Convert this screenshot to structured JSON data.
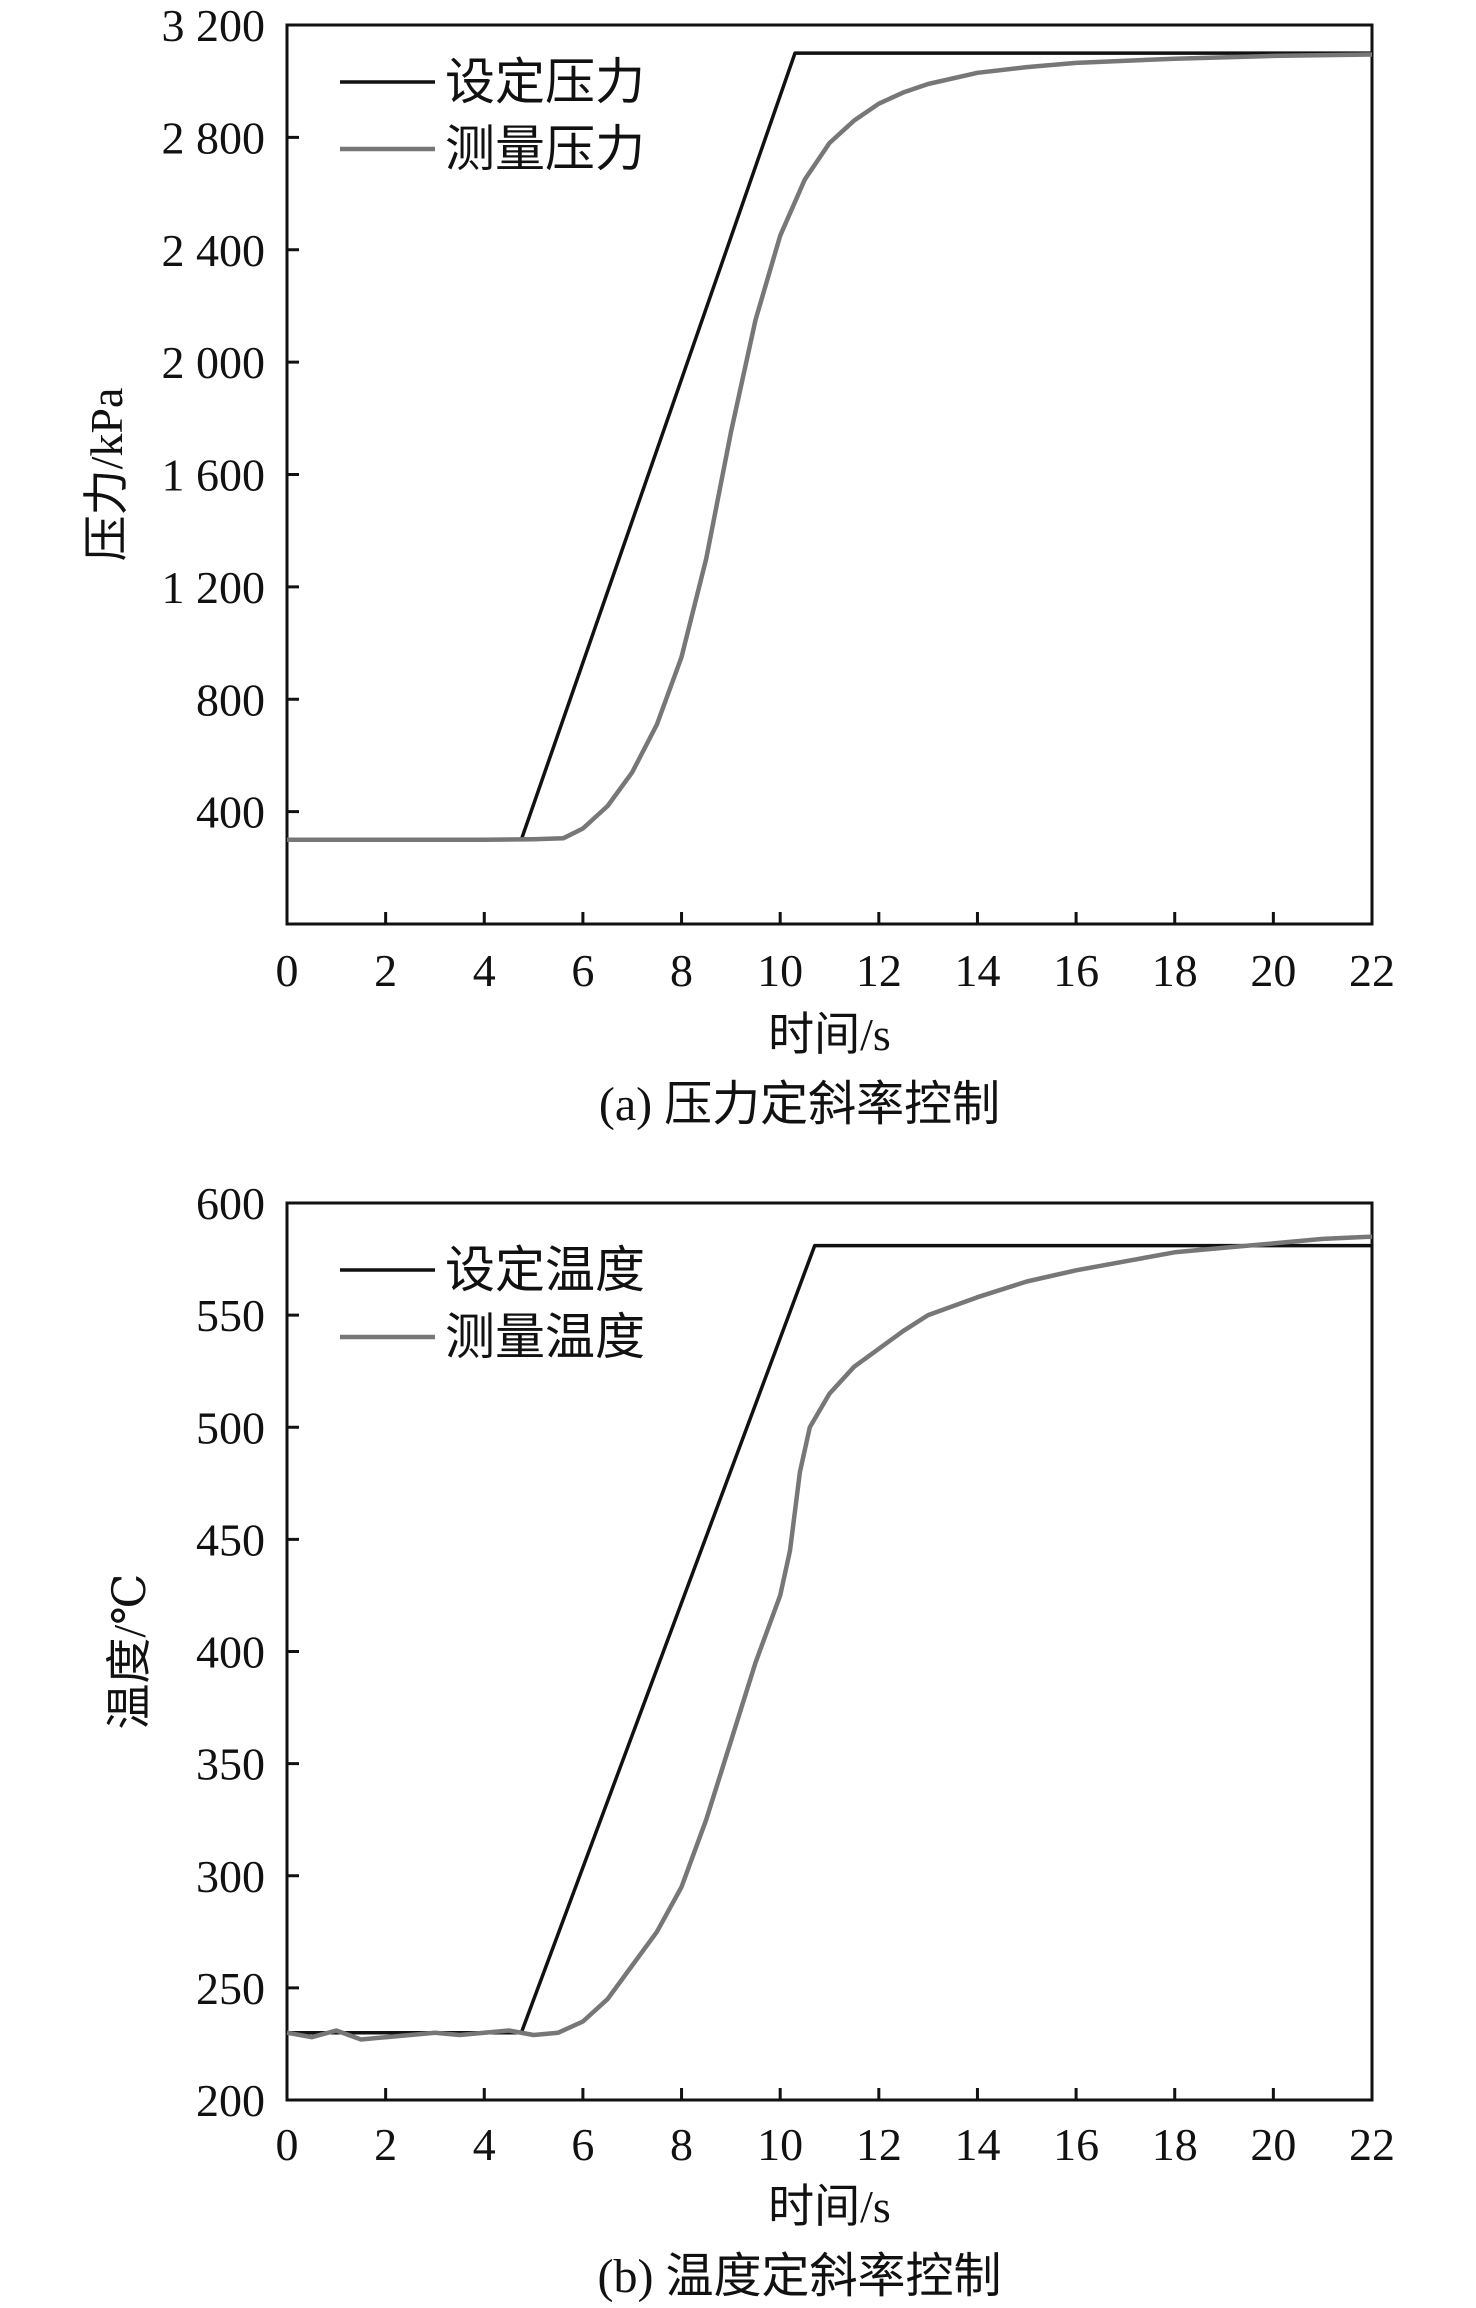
{
  "chart_data": [
    {
      "type": "line",
      "caption": "(a) 压力定斜率控制",
      "xlabel": "时间/s",
      "ylabel": "压力/kPa",
      "xlim": [
        0,
        22
      ],
      "ylim": [
        0,
        3200
      ],
      "x_ticks": [
        0,
        2,
        4,
        6,
        8,
        10,
        12,
        14,
        16,
        18,
        20,
        22
      ],
      "x_tick_labels": [
        "0",
        "2",
        "4",
        "6",
        "8",
        "10",
        "12",
        "14",
        "16",
        "18",
        "20",
        "22"
      ],
      "y_ticks": [
        400,
        800,
        1200,
        1600,
        2000,
        2400,
        2800,
        3200
      ],
      "y_tick_labels": [
        "400",
        "800",
        "1 200",
        "1 600",
        "2 000",
        "2 400",
        "2 800",
        "3 200"
      ],
      "grid": false,
      "legend_position": "top-left",
      "series": [
        {
          "name": "设定压力",
          "color": "#111111",
          "x": [
            0,
            4.75,
            10.3,
            22
          ],
          "y": [
            300,
            300,
            3100,
            3100
          ]
        },
        {
          "name": "测量压力",
          "color": "#777777",
          "x": [
            0,
            2,
            4,
            5,
            5.6,
            6,
            6.5,
            7,
            7.5,
            8,
            8.5,
            9,
            9.5,
            10,
            10.5,
            11,
            11.5,
            12,
            12.5,
            13,
            14,
            15,
            16,
            18,
            20,
            22
          ],
          "y": [
            300,
            300,
            300,
            302,
            305,
            340,
            420,
            540,
            710,
            950,
            1300,
            1750,
            2150,
            2450,
            2650,
            2780,
            2860,
            2920,
            2960,
            2990,
            3030,
            3050,
            3065,
            3080,
            3090,
            3095
          ]
        }
      ]
    },
    {
      "type": "line",
      "caption": "(b) 温度定斜率控制",
      "xlabel": "时间/s",
      "ylabel": "温度/℃",
      "xlim": [
        0,
        22
      ],
      "ylim": [
        200,
        600
      ],
      "x_ticks": [
        0,
        2,
        4,
        6,
        8,
        10,
        12,
        14,
        16,
        18,
        20,
        22
      ],
      "x_tick_labels": [
        "0",
        "2",
        "4",
        "6",
        "8",
        "10",
        "12",
        "14",
        "16",
        "18",
        "20",
        "22"
      ],
      "y_ticks": [
        200,
        250,
        300,
        350,
        400,
        450,
        500,
        550,
        600
      ],
      "y_tick_labels": [
        "200",
        "250",
        "300",
        "350",
        "400",
        "450",
        "500",
        "550",
        "600"
      ],
      "grid": false,
      "legend_position": "top-left",
      "series": [
        {
          "name": "设定温度",
          "color": "#111111",
          "x": [
            0,
            4.75,
            10.7,
            22
          ],
          "y": [
            230,
            230,
            581,
            581
          ]
        },
        {
          "name": "测量温度",
          "color": "#777777",
          "x": [
            0,
            0.5,
            1,
            1.5,
            2,
            2.5,
            3,
            3.5,
            4,
            4.5,
            5,
            5.5,
            6,
            6.5,
            7,
            7.5,
            8,
            8.5,
            9,
            9.5,
            10,
            10.2,
            10.4,
            10.6,
            11,
            11.5,
            12,
            12.5,
            13,
            14,
            15,
            16,
            17,
            18,
            19,
            20,
            21,
            22
          ],
          "y": [
            230,
            228,
            231,
            227,
            228,
            229,
            230,
            229,
            230,
            231,
            229,
            230,
            235,
            245,
            260,
            275,
            295,
            325,
            360,
            395,
            425,
            445,
            480,
            500,
            515,
            527,
            535,
            543,
            550,
            558,
            565,
            570,
            574,
            578,
            580,
            582,
            584,
            585
          ]
        }
      ]
    }
  ]
}
